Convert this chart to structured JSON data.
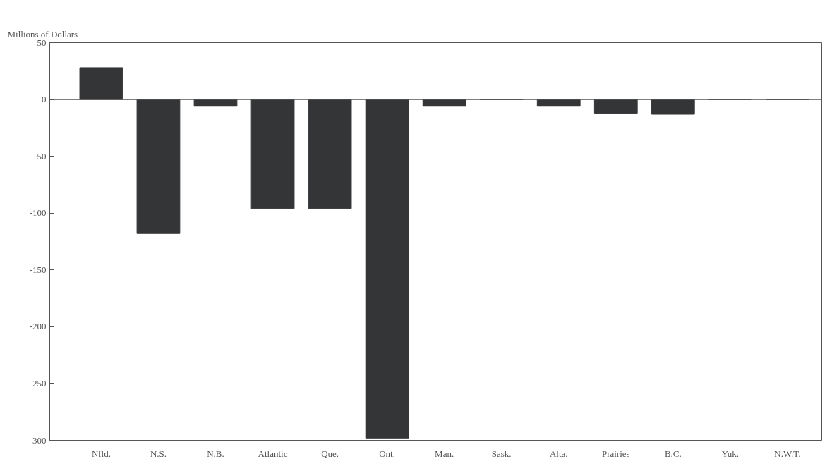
{
  "chart_data": {
    "type": "bar",
    "ylabel": "Millions of Dollars",
    "categories": [
      "Nfld.",
      "N.S.",
      "N.B.",
      "Atlantic",
      "Que.",
      "Ont.",
      "Man.",
      "Sask.",
      "Alta.",
      "Prairies",
      "B.C.",
      "Yuk.",
      "N.W.T."
    ],
    "values": [
      28,
      -118,
      -6,
      -96,
      -96,
      -298,
      -6,
      0,
      -6,
      -12,
      -13,
      0,
      0
    ],
    "color": "#333537",
    "ylim": [
      -300,
      50
    ],
    "yticks": [
      50,
      0,
      -50,
      -100,
      -150,
      -200,
      -250,
      -300
    ],
    "ref_lines": [
      {
        "axis": "y",
        "value": 0,
        "color": "#555555"
      }
    ],
    "grid": false
  }
}
